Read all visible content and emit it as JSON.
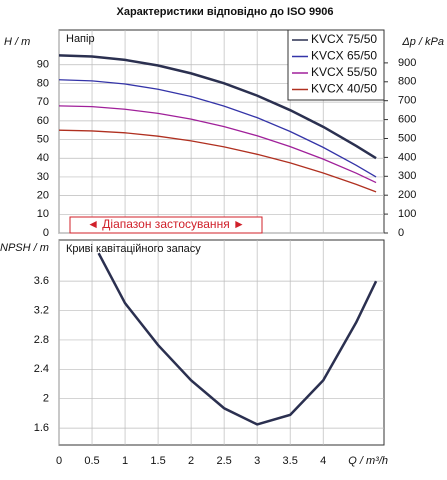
{
  "chart_data": [
    {
      "type": "line",
      "title": "Характеристики відповідно до ISO 9906",
      "ylabel": "H / m",
      "y2label": "Δp / kPa",
      "annotations": [
        "Напір",
        "◄ Діапазон застосування ►"
      ],
      "x": [
        0,
        0.5,
        1,
        1.5,
        2,
        2.5,
        3,
        3.5,
        4,
        4.5,
        4.8
      ],
      "xlim": [
        0,
        4.92
      ],
      "ylim": [
        0,
        108.6
      ],
      "yticks": [
        0,
        10,
        20,
        30,
        40,
        50,
        60,
        70,
        80,
        90
      ],
      "y2lim": [
        0,
        1074
      ],
      "y2ticks": [
        0,
        100,
        200,
        300,
        400,
        500,
        600,
        700,
        800,
        900
      ],
      "grid": true,
      "legend": "upper right",
      "series": [
        {
          "name": "KVCX 75/50",
          "color": "#2b3050",
          "values": [
            95,
            94.4,
            92.6,
            89.6,
            85.4,
            80.1,
            73.5,
            65.7,
            56.8,
            46.6,
            40
          ]
        },
        {
          "name": "KVCX 65/50",
          "color": "#3434a8",
          "values": [
            82,
            81.4,
            79.7,
            76.9,
            73,
            67.9,
            61.7,
            54.3,
            45.8,
            36.2,
            30
          ]
        },
        {
          "name": "KVCX 55/50",
          "color": "#a0209a",
          "values": [
            68,
            67.6,
            66.2,
            64,
            60.9,
            56.9,
            52,
            46.2,
            39.5,
            32,
            27
          ]
        },
        {
          "name": "KVCX 40/50",
          "color": "#b03020",
          "values": [
            55,
            54.6,
            53.6,
            51.8,
            49.3,
            46.1,
            42.1,
            37.5,
            32.1,
            26,
            22
          ]
        }
      ]
    },
    {
      "type": "line",
      "ylabel": "NPSH / m",
      "xlabel": "Q / m³/h",
      "annotations": [
        "Криві кавітаційного запасу"
      ],
      "x": [
        0.6,
        1,
        1.5,
        2,
        2.5,
        3,
        3.5,
        4,
        4.5,
        4.8
      ],
      "xlim": [
        0,
        4.92
      ],
      "xticks": [
        0,
        0.5,
        1,
        1.5,
        2,
        2.5,
        3,
        3.5,
        4
      ],
      "ylim": [
        1.37,
        4.16
      ],
      "yticks": [
        1.6,
        2,
        2.4,
        2.8,
        3.2,
        3.6
      ],
      "grid": true,
      "series": [
        {
          "name": "NPSH",
          "color": "#2b3050",
          "values": [
            3.98,
            3.3,
            2.73,
            2.25,
            1.87,
            1.65,
            1.78,
            2.25,
            3.04,
            3.6
          ]
        }
      ]
    }
  ]
}
